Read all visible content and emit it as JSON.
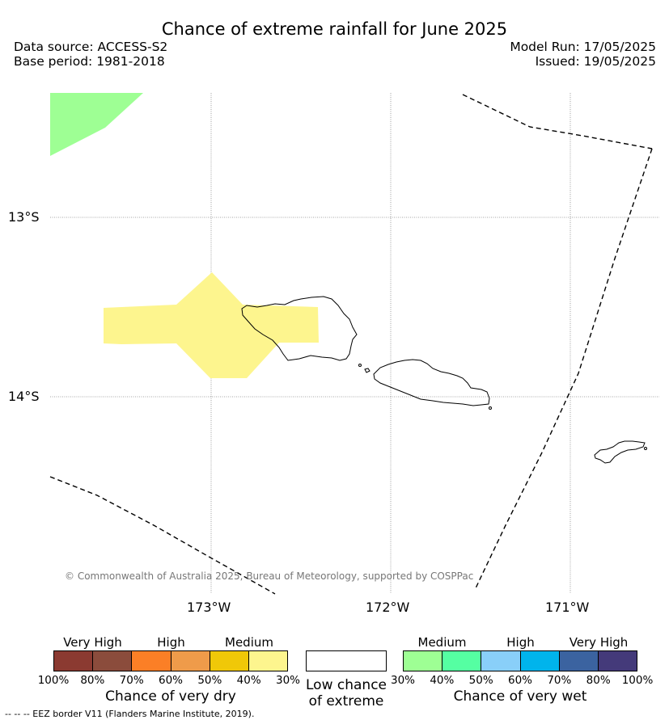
{
  "header": {
    "title": "Chance of extreme rainfall for June 2025",
    "data_source": "Data source: ACCESS-S2",
    "base_period": "Base period: 1981-2018",
    "model_run": "Model Run: 17/05/2025",
    "issued": "Issued: 19/05/2025"
  },
  "map": {
    "lat_labels": [
      "13°S",
      "14°S"
    ],
    "lon_labels": [
      "173°W",
      "172°W",
      "171°W"
    ],
    "copyright": "© Commonwealth of Australia 2025, Bureau of Meteorology, supported by COSPPac",
    "colors": {
      "medium_wet": "#9eff94",
      "medium_dry": "#fdf58e",
      "eez_line": "#000000",
      "grid": "#888888"
    }
  },
  "legend": {
    "dry": {
      "groups": [
        "Very High",
        "High",
        "Medium"
      ],
      "ticks": [
        "100%",
        "80%",
        "70%",
        "60%",
        "50%",
        "40%",
        "30%"
      ],
      "label": "Chance of very dry",
      "colors": [
        "#8b3a31",
        "#8b4c3c",
        "#fb7f26",
        "#ef9b4a",
        "#f0c808",
        "#fdf58e"
      ]
    },
    "low": {
      "label_line1": "Low chance",
      "label_line2": "of extreme",
      "color": "#ffffff"
    },
    "wet": {
      "groups": [
        "Medium",
        "High",
        "Very High"
      ],
      "ticks": [
        "30%",
        "40%",
        "50%",
        "60%",
        "70%",
        "80%",
        "100%"
      ],
      "label": "Chance of very wet",
      "colors": [
        "#9eff94",
        "#55ffa2",
        "#89cff9",
        "#00b4ec",
        "#3b63a0",
        "#443a7a"
      ]
    },
    "eez_note": "--  --  -- EEZ border V11 (Flanders Marine Institute, 2019)."
  }
}
